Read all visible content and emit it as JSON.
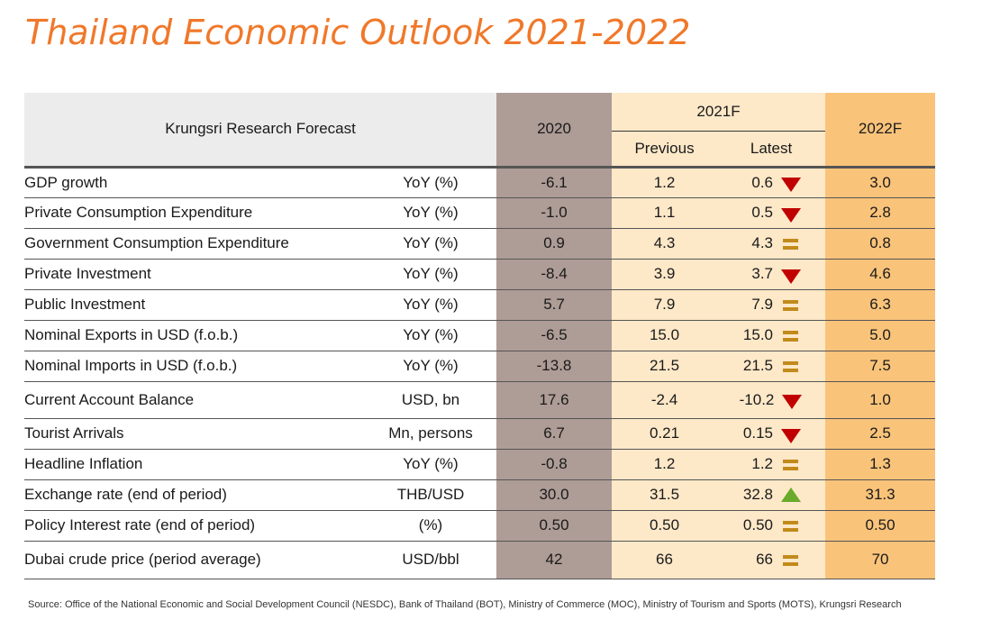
{
  "title": "Thailand Economic Outlook 2021-2022",
  "table": {
    "header_label": "Krungsri Research Forecast",
    "col_2020": "2020",
    "col_2021": "2021F",
    "col_previous": "Previous",
    "col_latest": "Latest",
    "col_2022": "2022F",
    "rows": [
      {
        "name": "GDP growth",
        "unit": "YoY (%)",
        "v2020": "-6.1",
        "previous": "1.2",
        "latest": "0.6",
        "trend": "down",
        "v2022": "3.0"
      },
      {
        "name": "Private Consumption Expenditure",
        "unit": "YoY (%)",
        "v2020": "-1.0",
        "previous": "1.1",
        "latest": "0.5",
        "trend": "down",
        "v2022": "2.8"
      },
      {
        "name": "Government Consumption Expenditure",
        "unit": "YoY (%)",
        "v2020": "0.9",
        "previous": "4.3",
        "latest": "4.3",
        "trend": "same",
        "v2022": "0.8"
      },
      {
        "name": "Private Investment",
        "unit": "YoY (%)",
        "v2020": "-8.4",
        "previous": "3.9",
        "latest": "3.7",
        "trend": "down",
        "v2022": "4.6"
      },
      {
        "name": "Public Investment",
        "unit": "YoY (%)",
        "v2020": "5.7",
        "previous": "7.9",
        "latest": "7.9",
        "trend": "same",
        "v2022": "6.3"
      },
      {
        "name": "Nominal Exports in USD (f.o.b.)",
        "unit": "YoY (%)",
        "v2020": "-6.5",
        "previous": "15.0",
        "latest": "15.0",
        "trend": "same",
        "v2022": "5.0"
      },
      {
        "name": "Nominal Imports in USD (f.o.b.)",
        "unit": "YoY (%)",
        "v2020": "-13.8",
        "previous": "21.5",
        "latest": "21.5",
        "trend": "same",
        "v2022": "7.5"
      },
      {
        "name": "Current Account Balance",
        "unit": "USD, bn",
        "v2020": "17.6",
        "previous": "-2.4",
        "latest": "-10.2",
        "trend": "down",
        "v2022": "1.0"
      },
      {
        "name": "Tourist Arrivals",
        "unit": "Mn, persons",
        "v2020": "6.7",
        "previous": "0.21",
        "latest": "0.15",
        "trend": "down",
        "v2022": "2.5"
      },
      {
        "name": "Headline Inflation",
        "unit": "YoY (%)",
        "v2020": "-0.8",
        "previous": "1.2",
        "latest": "1.2",
        "trend": "same",
        "v2022": "1.3"
      },
      {
        "name": "Exchange rate (end of period)",
        "unit": "THB/USD",
        "v2020": "30.0",
        "previous": "31.5",
        "latest": "32.8",
        "trend": "up",
        "v2022": "31.3"
      },
      {
        "name": "Policy Interest rate (end of period)",
        "unit": "(%)",
        "v2020": "0.50",
        "previous": "0.50",
        "latest": "0.50",
        "trend": "same",
        "v2022": "0.50"
      },
      {
        "name": "Dubai crude price (period average)",
        "unit": "USD/bbl",
        "v2020": "42",
        "previous": "66",
        "latest": "66",
        "trend": "same",
        "v2022": "70"
      }
    ]
  },
  "colors": {
    "title": "#f0782a",
    "col_2020": "#ae9c96",
    "col_2021": "#fde8c8",
    "col_2022": "#f9c37a",
    "down": "#c00000",
    "up": "#6aaa2a",
    "same": "#c28a1a"
  },
  "source": "Source: Office of the National Economic and Social Development Council (NESDC), Bank of Thailand (BOT), Ministry of Commerce (MOC), Ministry of Tourism and Sports (MOTS), Krungsri Research"
}
